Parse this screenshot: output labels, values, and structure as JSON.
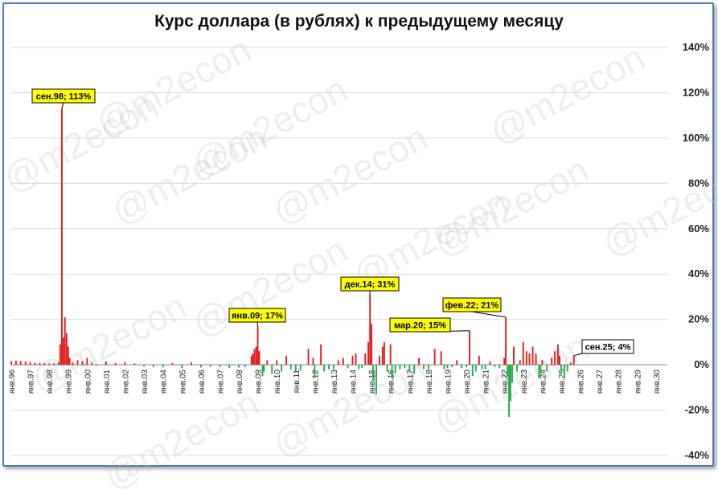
{
  "chart_data": {
    "type": "bar",
    "title": "Курс доллара (в рублях) к предыдущему месяцу",
    "xlabel": "",
    "ylabel": "",
    "ylim": [
      -40,
      140
    ],
    "y_ticks": [
      "-40%",
      "-20%",
      "0%",
      "20%",
      "40%",
      "60%",
      "80%",
      "100%",
      "120%",
      "140%"
    ],
    "y_tick_values": [
      -40,
      -20,
      0,
      20,
      40,
      60,
      80,
      100,
      120,
      140
    ],
    "x_tick_labels": [
      "янв.96",
      "янв.97",
      "янв.98",
      "янв.99",
      "янв.00",
      "янв.01",
      "янв.02",
      "янв.03",
      "янв.04",
      "янв.05",
      "янв.06",
      "янв.07",
      "янв.08",
      "янв.09",
      "янв.10",
      "янв.11",
      "янв.12",
      "янв.13",
      "янв.14",
      "янв.15",
      "янв.16",
      "янв.17",
      "янв.18",
      "янв.19",
      "янв.20",
      "янв.21",
      "янв.22",
      "янв.23",
      "янв.24",
      "янв.25",
      "янв.26",
      "янв.27",
      "янв.28",
      "янв.29",
      "янв.30"
    ],
    "x_tick_years": [
      1996,
      1997,
      1998,
      1999,
      2000,
      2001,
      2002,
      2003,
      2004,
      2005,
      2006,
      2007,
      2008,
      2009,
      2010,
      2011,
      2012,
      2013,
      2014,
      2015,
      2016,
      2017,
      2018,
      2019,
      2020,
      2021,
      2022,
      2023,
      2024,
      2025,
      2026,
      2027,
      2028,
      2029,
      2030
    ],
    "colors": {
      "positive": "#e31c1c",
      "negative": "#1fae4b",
      "grid": "#d9d9d9",
      "callout": "#ffff00"
    },
    "bars": [
      {
        "x": 1996.0,
        "y": 1.5
      },
      {
        "x": 1996.25,
        "y": 1.8
      },
      {
        "x": 1996.5,
        "y": 1.6
      },
      {
        "x": 1996.75,
        "y": 1.4
      },
      {
        "x": 1997.0,
        "y": 1.0
      },
      {
        "x": 1997.25,
        "y": 0.9
      },
      {
        "x": 1997.5,
        "y": 0.8
      },
      {
        "x": 1997.75,
        "y": 0.7
      },
      {
        "x": 1998.0,
        "y": 0.6
      },
      {
        "x": 1998.25,
        "y": 0.6
      },
      {
        "x": 1998.5,
        "y": 1.0
      },
      {
        "x": 1998.58,
        "y": 9.0
      },
      {
        "x": 1998.67,
        "y": 113
      },
      {
        "x": 1998.75,
        "y": 12.0
      },
      {
        "x": 1998.83,
        "y": 21.0
      },
      {
        "x": 1998.92,
        "y": 14.0
      },
      {
        "x": 1999.0,
        "y": 8.0
      },
      {
        "x": 1999.08,
        "y": 3.0
      },
      {
        "x": 1999.25,
        "y": 1.0
      },
      {
        "x": 1999.5,
        "y": 2.0
      },
      {
        "x": 1999.75,
        "y": 1.5
      },
      {
        "x": 2000.0,
        "y": 3.0
      },
      {
        "x": 2000.25,
        "y": 1.0
      },
      {
        "x": 2000.5,
        "y": -0.5
      },
      {
        "x": 2001.0,
        "y": 1.5
      },
      {
        "x": 2001.5,
        "y": 0.8
      },
      {
        "x": 2002.0,
        "y": 1.2
      },
      {
        "x": 2002.5,
        "y": 0.6
      },
      {
        "x": 2003.0,
        "y": -0.8
      },
      {
        "x": 2003.5,
        "y": -1.0
      },
      {
        "x": 2004.0,
        "y": -1.2
      },
      {
        "x": 2004.5,
        "y": 0.8
      },
      {
        "x": 2005.0,
        "y": -1.5
      },
      {
        "x": 2005.5,
        "y": 1.0
      },
      {
        "x": 2006.0,
        "y": -1.2
      },
      {
        "x": 2006.5,
        "y": -0.9
      },
      {
        "x": 2007.0,
        "y": -1.0
      },
      {
        "x": 2007.5,
        "y": -1.5
      },
      {
        "x": 2008.0,
        "y": -1.2
      },
      {
        "x": 2008.33,
        "y": -1.0
      },
      {
        "x": 2008.67,
        "y": 4.0
      },
      {
        "x": 2008.75,
        "y": 5.0
      },
      {
        "x": 2008.83,
        "y": 7.0
      },
      {
        "x": 2008.92,
        "y": 8.0
      },
      {
        "x": 2009.0,
        "y": 17
      },
      {
        "x": 2009.08,
        "y": 6.0
      },
      {
        "x": 2009.25,
        "y": -5.0
      },
      {
        "x": 2009.33,
        "y": -3.0
      },
      {
        "x": 2009.5,
        "y": 2.0
      },
      {
        "x": 2009.75,
        "y": -4.0
      },
      {
        "x": 2010.0,
        "y": 2.0
      },
      {
        "x": 2010.25,
        "y": -3.0
      },
      {
        "x": 2010.5,
        "y": 4.0
      },
      {
        "x": 2010.75,
        "y": -2.0
      },
      {
        "x": 2011.0,
        "y": -3.0
      },
      {
        "x": 2011.25,
        "y": -2.5
      },
      {
        "x": 2011.67,
        "y": 7.0
      },
      {
        "x": 2011.92,
        "y": 3.0
      },
      {
        "x": 2012.0,
        "y": -6.0
      },
      {
        "x": 2012.33,
        "y": 9.0
      },
      {
        "x": 2012.5,
        "y": -3.0
      },
      {
        "x": 2012.75,
        "y": -2.0
      },
      {
        "x": 2013.0,
        "y": -2.0
      },
      {
        "x": 2013.25,
        "y": 2.0
      },
      {
        "x": 2013.5,
        "y": 3.0
      },
      {
        "x": 2013.75,
        "y": -1.5
      },
      {
        "x": 2014.0,
        "y": 4.0
      },
      {
        "x": 2014.17,
        "y": 5.0
      },
      {
        "x": 2014.33,
        "y": -2.0
      },
      {
        "x": 2014.5,
        "y": -1.5
      },
      {
        "x": 2014.67,
        "y": 5.0
      },
      {
        "x": 2014.83,
        "y": 10.0
      },
      {
        "x": 2014.92,
        "y": 31
      },
      {
        "x": 2015.0,
        "y": 18.0
      },
      {
        "x": 2015.08,
        "y": -7.0
      },
      {
        "x": 2015.25,
        "y": -13.0
      },
      {
        "x": 2015.42,
        "y": 4.0
      },
      {
        "x": 2015.58,
        "y": 8.0
      },
      {
        "x": 2015.67,
        "y": 10.0
      },
      {
        "x": 2015.83,
        "y": -3.0
      },
      {
        "x": 2016.0,
        "y": 9.0
      },
      {
        "x": 2016.08,
        "y": -6.0
      },
      {
        "x": 2016.25,
        "y": -4.0
      },
      {
        "x": 2016.5,
        "y": -2.0
      },
      {
        "x": 2016.75,
        "y": -1.5
      },
      {
        "x": 2017.0,
        "y": -3.0
      },
      {
        "x": 2017.25,
        "y": -4.0
      },
      {
        "x": 2017.5,
        "y": 3.0
      },
      {
        "x": 2017.75,
        "y": -2.0
      },
      {
        "x": 2018.0,
        "y": -2.0
      },
      {
        "x": 2018.33,
        "y": 7.0
      },
      {
        "x": 2018.67,
        "y": 6.0
      },
      {
        "x": 2018.83,
        "y": -2.0
      },
      {
        "x": 2019.0,
        "y": -1.5
      },
      {
        "x": 2019.25,
        "y": -1.0
      },
      {
        "x": 2019.5,
        "y": 2.0
      },
      {
        "x": 2019.75,
        "y": -1.5
      },
      {
        "x": 2020.0,
        "y": -1.0
      },
      {
        "x": 2020.17,
        "y": 15
      },
      {
        "x": 2020.33,
        "y": -5.0
      },
      {
        "x": 2020.5,
        "y": -3.0
      },
      {
        "x": 2020.67,
        "y": 4.0
      },
      {
        "x": 2020.83,
        "y": -2.0
      },
      {
        "x": 2021.0,
        "y": -2.0
      },
      {
        "x": 2021.25,
        "y": 1.5
      },
      {
        "x": 2021.5,
        "y": -1.0
      },
      {
        "x": 2021.75,
        "y": -1.5
      },
      {
        "x": 2022.0,
        "y": 3.0
      },
      {
        "x": 2022.08,
        "y": 21
      },
      {
        "x": 2022.17,
        "y": -5.0
      },
      {
        "x": 2022.25,
        "y": -23
      },
      {
        "x": 2022.33,
        "y": -16.0
      },
      {
        "x": 2022.42,
        "y": -8.0
      },
      {
        "x": 2022.5,
        "y": 8.0
      },
      {
        "x": 2022.67,
        "y": -3.0
      },
      {
        "x": 2022.83,
        "y": 2.0
      },
      {
        "x": 2023.0,
        "y": 10.0
      },
      {
        "x": 2023.17,
        "y": 6.0
      },
      {
        "x": 2023.33,
        "y": 5.0
      },
      {
        "x": 2023.5,
        "y": 8.0
      },
      {
        "x": 2023.67,
        "y": 5.0
      },
      {
        "x": 2023.83,
        "y": -6.0
      },
      {
        "x": 2023.92,
        "y": -4.0
      },
      {
        "x": 2024.0,
        "y": 2.0
      },
      {
        "x": 2024.25,
        "y": -3.0
      },
      {
        "x": 2024.5,
        "y": 3.0
      },
      {
        "x": 2024.67,
        "y": 6.0
      },
      {
        "x": 2024.83,
        "y": 9.0
      },
      {
        "x": 2024.92,
        "y": 4.0
      },
      {
        "x": 2025.0,
        "y": -4.0
      },
      {
        "x": 2025.17,
        "y": -6.0
      },
      {
        "x": 2025.33,
        "y": -3.0
      },
      {
        "x": 2025.5,
        "y": 1.0
      },
      {
        "x": 2025.67,
        "y": 4
      }
    ],
    "annotations": [
      {
        "text": "сен.98; 113%",
        "x": 1998.67,
        "y": 113,
        "style": "callout"
      },
      {
        "text": "янв.09; 17%",
        "x": 2009.0,
        "y": 17,
        "style": "callout"
      },
      {
        "text": "дек.14; 31%",
        "x": 2014.92,
        "y": 31,
        "style": "callout"
      },
      {
        "text": "мар.20; 15%",
        "x": 2020.17,
        "y": 15,
        "style": "callout"
      },
      {
        "text": "фев.22; 21%",
        "x": 2022.08,
        "y": 21,
        "style": "callout"
      },
      {
        "text": "сен.25; 4%",
        "x": 2025.67,
        "y": 4,
        "style": "plain"
      }
    ],
    "grid": true,
    "legend": "none"
  },
  "watermark": {
    "text": "@m2econ"
  }
}
